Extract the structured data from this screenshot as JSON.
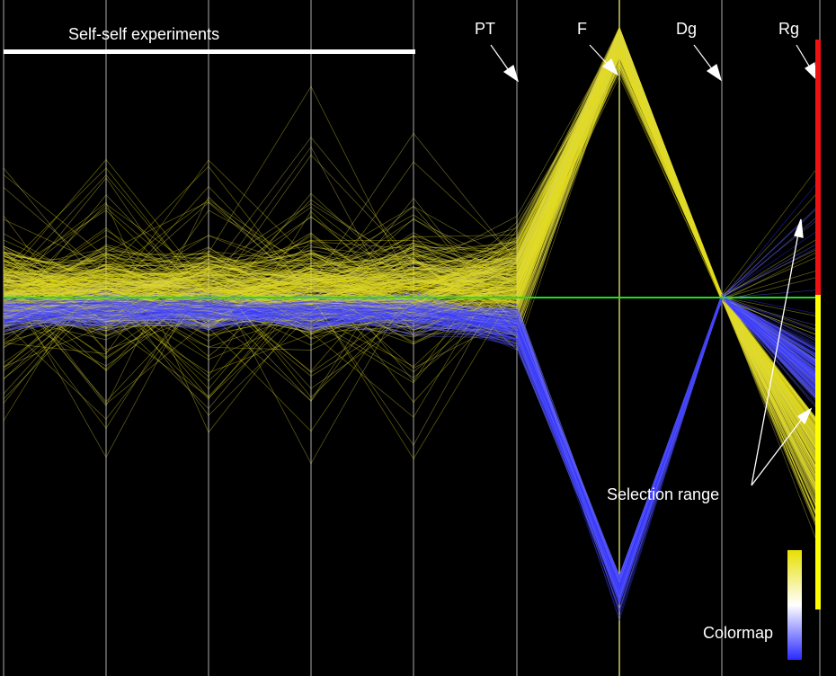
{
  "title": "Self-self experiments",
  "axes": [
    {
      "label": ""
    },
    {
      "label": ""
    },
    {
      "label": ""
    },
    {
      "label": ""
    },
    {
      "label": ""
    },
    {
      "label": "PT"
    },
    {
      "label": "F"
    },
    {
      "label": "Dg"
    },
    {
      "label": "Rg"
    }
  ],
  "annotations": {
    "selection_label": "Selection range",
    "colormap_label": "Colormap"
  },
  "colors": {
    "background": "#000000",
    "axis": "#555555",
    "high": "#e8e000",
    "mid": "#ffffff",
    "low": "#2a2aff",
    "threshold_line": "#22dd22",
    "selection_upper": "#ee1111",
    "selection_lower": "#ffff00",
    "title_bar": "#ffffff"
  },
  "chart_data": {
    "type": "parallel-coordinates",
    "dimensions": [
      "",
      "",
      "",
      "",
      "",
      "PT",
      "F",
      "Dg",
      "Rg"
    ],
    "threshold": 0.5,
    "selection": {
      "upper": [
        0.5,
        1.0
      ],
      "lower": [
        0.0,
        0.5
      ]
    },
    "colormap": [
      "#2a2aff",
      "#ffffff",
      "#e8e000"
    ]
  }
}
